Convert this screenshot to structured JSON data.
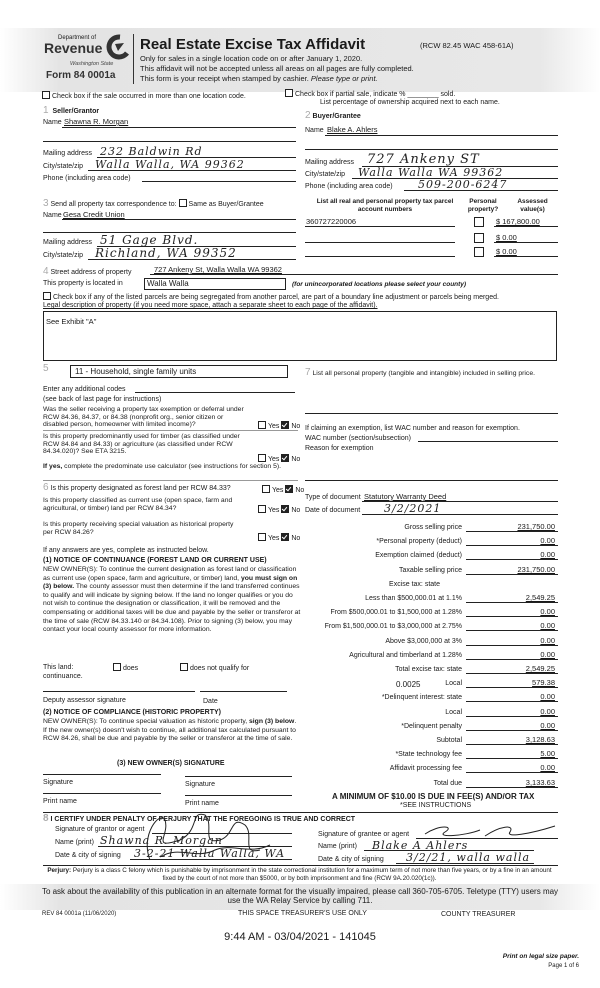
{
  "header": {
    "agency_top": "Department of",
    "agency_name": "Revenue",
    "agency_state": "Washington State",
    "form_number": "Form 84 0001a",
    "title": "Real Estate Excise Tax Affidavit",
    "citation": "(RCW 82.45 WAC 458-61A)",
    "line1": "Only for sales in a single location code on or after January 1, 2020.",
    "line2": "This affidavit will not be accepted unless all areas on all pages are fully completed.",
    "line3": "This form is your receipt when stamped by cashier.",
    "line3_italic": "Please type or print."
  },
  "top_checks": {
    "multi_location": "Check box if the sale occurred in more than one location code.",
    "partial_sale": "Check box if partial sale, indicate % ________ sold.",
    "ownership_note": "List percentage of ownership acquired next to each name."
  },
  "seller": {
    "num": "1",
    "heading": "Seller/Grantor",
    "name_label": "Name",
    "name": "Shawna R. Morgan",
    "mailing_label": "Mailing address",
    "mailing": "232 Baldwin Rd",
    "city_label": "City/state/zip",
    "city": "Walla Walla, WA 99362",
    "phone_label": "Phone (including area code)",
    "phone": ""
  },
  "buyer": {
    "num": "2",
    "heading": "Buyer/Grantee",
    "name_label": "Name",
    "name": "Blake A. Ahlers",
    "mailing_label": "Mailing address",
    "mailing": "727 Ankeny ST",
    "city_label": "City/state/zip",
    "city": "Walla Walla WA 99362",
    "phone_label": "Phone (including area code)",
    "phone": "509-200-6247"
  },
  "correspondence": {
    "num": "3",
    "label": "Send all property tax correspondence to:",
    "same_as_buyer": "Same as Buyer/Grantee",
    "same_checked": false,
    "name_label": "Name",
    "name": "Gesa Credit Union",
    "mailing_label": "Mailing address",
    "mailing": "51 Gage Blvd.",
    "city_label": "City/state/zip",
    "city": "Richland, WA 99352"
  },
  "parcels": {
    "col1": "List all real and personal property tax parcel account numbers",
    "col2": "Personal property?",
    "col3": "Assessed value(s)",
    "rows": [
      {
        "number": "360727220006",
        "personal": false,
        "value": "$ 167,800.00"
      },
      {
        "number": "",
        "personal": false,
        "value": "$ 0.00"
      },
      {
        "number": "",
        "personal": false,
        "value": "$ 0.00"
      }
    ]
  },
  "property": {
    "num": "4",
    "street_label": "Street address of property",
    "street": "727 Ankeny St, Walla Walla WA  99362",
    "located_label": "This property is located in",
    "located": "Walla Walla",
    "located_note": "(for unincorporated locations please select your county)",
    "segregated_check": "Check box if any of the listed parcels are being segregated from another parcel, are part of a boundary line adjustment or parcels being merged.",
    "legal_label": "Legal description of property (if you need more space, attach a separate sheet to each page of the affidavit).",
    "legal": "See Exhibit \"A\""
  },
  "section5": {
    "num": "5",
    "use_code": "11 - Household, single family units",
    "additional_codes_label": "Enter any additional codes",
    "additional_note": "(see back of last page for instructions)",
    "q1": "Was the seller receiving a property tax exemption or deferral under RCW 84.36, 84.37, or 84.38 (nonprofit org., senior citizen or disabled person, homeowner with limited income)?",
    "q2": "Is this property predominantly used for timber (as classified under RCW 84.84 and 84.33) or agriculture (as classified under RCW 84.34.020)? See ETA 3215.",
    "q2_note_bold": "If yes,",
    "q2_note": "complete the predominate use calculator (see instructions for section 5).",
    "yes": "Yes",
    "no": "No"
  },
  "section6": {
    "num": "6",
    "q1": "Is this property designated as forest land per RCW 84.33?",
    "q2": "Is this property classified as current use (open space, farm and agricultural, or timber) land per RCW 84.34?",
    "q3": "Is this property receiving special valuation as historical property per RCW 84.26?",
    "if_any": "If any answers are yes, complete as instructed below.",
    "notice1_title": "(1) NOTICE OF CONTINUANCE (FOREST LAND OR CURRENT USE)",
    "notice1_text_a": "NEW OWNER(S): To continue the current designation as forest land or classification as current use (open space, farm and agriculture, or timber) land,",
    "notice1_bold": "you must sign on (3) below.",
    "notice1_text_b": "The county assessor must then determine if the land transferred continues to qualify and will indicate by signing below. If the land no longer qualifies or you do not wish to continue the designation or classification, it will be removed and the compensating or additional taxes will be due and payable by the seller or transferor at the time of sale (RCW 84.33.140 or 84.34.108). Prior to signing (3) below, you may contact your local county assessor for more information.",
    "this_land": "This land:",
    "does": "does",
    "does_not": "does not qualify for",
    "continuance": "continuance.",
    "deputy": "Deputy assessor signature",
    "date": "Date",
    "notice2_title": "(2) NOTICE OF COMPLIANCE (HISTORIC PROPERTY)",
    "notice2_a": "NEW OWNER(S): To continue special valuation as historic property,",
    "notice2_bold": "sign (3) below",
    "notice2_b": ". If the new owner(s) doesn't wish to continue, all additional tax calculated pursuant to RCW 84.26, shall be due and payable by the seller or transferor at the time of sale.",
    "new_owner_sig": "(3) NEW OWNER(S) SIGNATURE",
    "signature": "Signature",
    "print_name": "Print name"
  },
  "section7": {
    "num": "7",
    "label": "List all personal property (tangible and intangible) included in selling price.",
    "exemption_label": "If claiming an exemption, list WAC number and reason for exemption.",
    "wac_label": "WAC number (section/subsection)",
    "reason_label": "Reason for exemption",
    "doc_type_label": "Type of document",
    "doc_type": "Statutory Warranty Deed",
    "doc_date_label": "Date of document",
    "doc_date": "3/2/2021"
  },
  "financials": [
    {
      "label": "Gross selling price",
      "value": "231,750.00"
    },
    {
      "label": "*Personal property (deduct)",
      "value": "0.00"
    },
    {
      "label": "Exemption claimed (deduct)",
      "value": "0.00"
    },
    {
      "label": "Taxable selling price",
      "value": "231,750.00"
    },
    {
      "label": "Excise tax: state",
      "value": null
    },
    {
      "label": "Less than $500,000.01 at 1.1%",
      "value": "2,549.25"
    },
    {
      "label": "From $500,000.01 to $1,500,000 at 1.28%",
      "value": "0.00"
    },
    {
      "label": "From $1,500,000.01 to $3,000,000 at 2.75%",
      "value": "0.00"
    },
    {
      "label": "Above $3,000,000 at 3%",
      "value": "0.00"
    },
    {
      "label": "Agricultural and timberland at 1.28%",
      "value": "0.00"
    },
    {
      "label": "Total excise tax: state",
      "value": "2,549.25"
    },
    {
      "label": "Local",
      "value": "579.38",
      "rate": "0.0025"
    },
    {
      "label": "*Delinquent interest: state",
      "value": "0.00"
    },
    {
      "label": "Local",
      "value": "0.00"
    },
    {
      "label": "*Delinquent penalty",
      "value": "0.00"
    },
    {
      "label": "Subtotal",
      "value": "3,128.63"
    },
    {
      "label": "*State technology fee",
      "value": "5.00"
    },
    {
      "label": "Affidavit processing fee",
      "value": "0.00"
    },
    {
      "label": "Total due",
      "value": "3,133.63"
    }
  ],
  "minimum_note": "A MINIMUM OF $10.00 IS DUE IN FEE(S) AND/OR TAX",
  "see_instructions": "*SEE INSTRUCTIONS",
  "certify": {
    "num": "8",
    "heading": "I CERTIFY UNDER PENALTY OF PERJURY THAT THE FOREGOING IS TRUE AND CORRECT",
    "grantor_sig_label": "Signature of grantor or agent",
    "grantor_name_label": "Name (print)",
    "grantor_name": "Shawna R. Morgan",
    "grantor_date_label": "Date & city of signing",
    "grantor_date": "3-2-21   Walla Walla, WA",
    "grantee_sig_label": "Signature of grantee or agent",
    "grantee_name_label": "Name (print)",
    "grantee_name": "Blake A Ahlers",
    "grantee_date_label": "Date & city of signing",
    "grantee_date": "3/2/21, walla walla"
  },
  "footer": {
    "perjury_bold": "Perjury:",
    "perjury": "Perjury is a class C felony which is punishable by imprisonment in the state correctional institution for a maximum term of not more than five years, or by a fine in an amount fixed by the court of not more than $5000, or by both imprisonment and fine (RCW 9A.20.020(1c)).",
    "alt_format": "To ask about the availability of this publication in an alternate format for the visually impaired, please call 360-705-6705. Teletype (TTY) users may use the WA Relay Service by calling 711.",
    "rev": "REV 84 0001a (11/06/2020)",
    "treasurer_use": "THIS SPACE TREASURER'S USE ONLY",
    "county_treasurer": "COUNTY TREASURER",
    "stamp": "9:44 AM - 03/04/2021 - 141045",
    "print_note": "Print on legal size paper.",
    "page": "Page 1 of 6"
  }
}
